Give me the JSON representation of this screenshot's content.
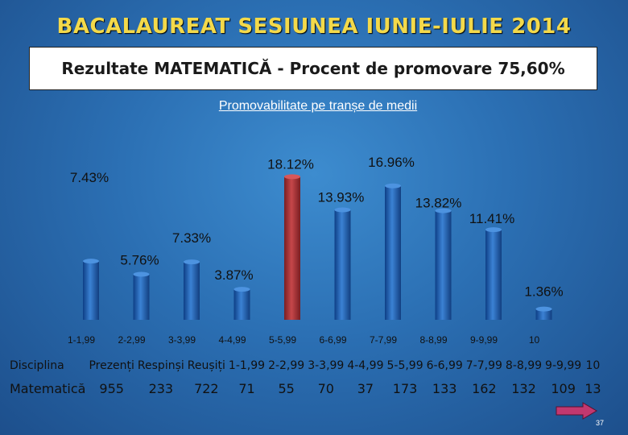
{
  "title": "BACALAUREAT SESIUNEA IUNIE-IULIE 2014",
  "subtitle": "Rezultate MATEMATICĂ - Procent de promovare 75,60%",
  "chart_data": {
    "type": "bar",
    "title": "Promovabilitate pe tranșe de medii",
    "categories": [
      "1-1,99",
      "2-2,99",
      "3-3,99",
      "4-4,99",
      "5-5,99",
      "6-6,99",
      "7-7,99",
      "8-8,99",
      "9-9,99",
      "10"
    ],
    "values": [
      7.43,
      5.76,
      7.33,
      3.87,
      18.12,
      13.93,
      16.96,
      13.82,
      11.41,
      1.36
    ],
    "data_labels": [
      "7.43%",
      "5.76%",
      "7.33%",
      "3.87%",
      "18.12%",
      "13.93%",
      "16.96%",
      "13.82%",
      "11.41%",
      "1.36%"
    ],
    "unit": "%",
    "highlighted_category": "5-5,99",
    "colors": {
      "bar": "#1f5fb0",
      "highlight": "#b23b3b"
    },
    "grid": false,
    "legend": "none"
  },
  "table": {
    "headers": [
      "Disciplina",
      "Prezenți",
      "Respinși",
      "Reușiți",
      "1-1,99",
      "2-2,99",
      "3-3,99",
      "4-4,99",
      "5-5,99",
      "6-6,99",
      "7-7,99",
      "8-8,99",
      "9-9,99",
      "10"
    ],
    "rows": [
      [
        "Matematică",
        "955",
        "233",
        "722",
        "71",
        "55",
        "70",
        "37",
        "173",
        "133",
        "162",
        "132",
        "109",
        "13"
      ]
    ]
  },
  "nav": {
    "icon": "right-arrow-icon",
    "color": "#c2386f"
  },
  "page_number": "37"
}
